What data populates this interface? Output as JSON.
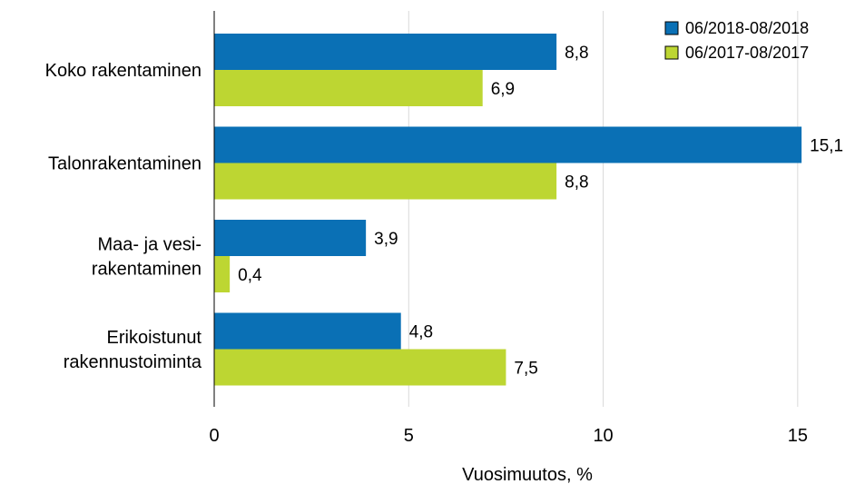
{
  "chart_data": {
    "type": "bar",
    "orientation": "horizontal",
    "categories": [
      [
        "Koko rakentaminen"
      ],
      [
        "Talonrakentaminen"
      ],
      [
        "Maa- ja vesi-",
        "rakentaminen"
      ],
      [
        "Erikoistunut",
        "rakennustoiminta"
      ]
    ],
    "series": [
      {
        "name": "06/2018-08/2018",
        "color": "#0a70b5",
        "values": [
          8.8,
          15.1,
          3.9,
          4.8
        ],
        "labels": [
          "8,8",
          "15,1",
          "3,9",
          "4,8"
        ]
      },
      {
        "name": "06/2017-08/2017",
        "color": "#bdd632",
        "values": [
          6.9,
          8.8,
          0.4,
          7.5
        ],
        "labels": [
          "6,9",
          "8,8",
          "0,4",
          "7,5"
        ]
      }
    ],
    "xlabel": "Vuosimuutos, %",
    "xlim": [
      0,
      16.1
    ],
    "xticks": [
      0,
      5,
      10,
      15
    ],
    "xtick_labels": [
      "0",
      "5",
      "10",
      "15"
    ],
    "grid": "vertical",
    "legend": "top-right"
  }
}
